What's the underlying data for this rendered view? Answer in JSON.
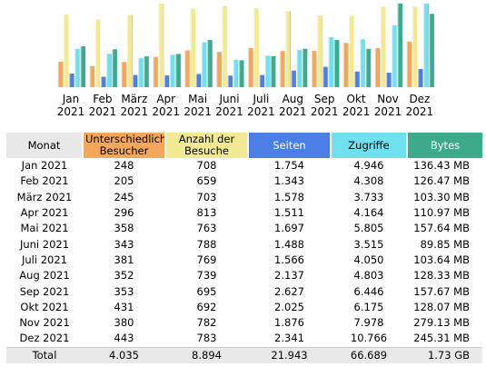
{
  "colors": {
    "visitors": "#f2a75b",
    "visits": "#f2ea93",
    "pages": "#4c7ee8",
    "hits": "#6fe0ee",
    "bandwidth": "#3eaa8c",
    "header_month_bg": "#e8e8e8"
  },
  "chart_data": {
    "type": "bar",
    "categories": [
      "Jan\n2021",
      "Feb\n2021",
      "März\n2021",
      "Apr\n2021",
      "Mai\n2021",
      "Juni\n2021",
      "Juli\n2021",
      "Aug\n2021",
      "Sep\n2021",
      "Okt\n2021",
      "Nov\n2021",
      "Dez\n2021"
    ],
    "series": [
      {
        "name": "Unterschiedliche Besucher",
        "key": "visitors",
        "values": [
          248,
          205,
          245,
          296,
          358,
          343,
          381,
          352,
          353,
          431,
          380,
          443
        ]
      },
      {
        "name": "Anzahl der Besuche",
        "key": "visits",
        "values": [
          708,
          659,
          703,
          813,
          763,
          788,
          769,
          739,
          695,
          692,
          782,
          783
        ]
      },
      {
        "name": "Seiten",
        "key": "pages",
        "values": [
          1754,
          1343,
          1578,
          1511,
          1697,
          1488,
          1566,
          2137,
          2627,
          2025,
          1876,
          2341
        ]
      },
      {
        "name": "Zugriffe",
        "key": "hits",
        "values": [
          4946,
          4308,
          3733,
          4164,
          5805,
          3515,
          4050,
          4803,
          6446,
          6175,
          7978,
          10766
        ]
      },
      {
        "name": "Bytes",
        "key": "bandwidth",
        "values": [
          136.43,
          126.47,
          103.3,
          110.97,
          157.64,
          89.85,
          103.64,
          128.33,
          157.67,
          128.07,
          279.13,
          245.31
        ],
        "unit": "MB"
      }
    ]
  },
  "table": {
    "headers": {
      "month": "Monat",
      "visitors": "Unterschiedliche Besucher",
      "visits": "Anzahl der Besuche",
      "pages": "Seiten",
      "hits": "Zugriffe",
      "bandwidth": "Bytes"
    },
    "rows": [
      {
        "month": "Jan 2021",
        "visitors": "248",
        "visits": "708",
        "pages": "1.754",
        "hits": "4.946",
        "bandwidth": "136.43 MB"
      },
      {
        "month": "Feb 2021",
        "visitors": "205",
        "visits": "659",
        "pages": "1.343",
        "hits": "4.308",
        "bandwidth": "126.47 MB"
      },
      {
        "month": "März 2021",
        "visitors": "245",
        "visits": "703",
        "pages": "1.578",
        "hits": "3.733",
        "bandwidth": "103.30 MB"
      },
      {
        "month": "Apr 2021",
        "visitors": "296",
        "visits": "813",
        "pages": "1.511",
        "hits": "4.164",
        "bandwidth": "110.97 MB"
      },
      {
        "month": "Mai 2021",
        "visitors": "358",
        "visits": "763",
        "pages": "1.697",
        "hits": "5.805",
        "bandwidth": "157.64 MB"
      },
      {
        "month": "Juni 2021",
        "visitors": "343",
        "visits": "788",
        "pages": "1.488",
        "hits": "3.515",
        "bandwidth": "89.85 MB"
      },
      {
        "month": "Juli 2021",
        "visitors": "381",
        "visits": "769",
        "pages": "1.566",
        "hits": "4.050",
        "bandwidth": "103.64 MB"
      },
      {
        "month": "Aug 2021",
        "visitors": "352",
        "visits": "739",
        "pages": "2.137",
        "hits": "4.803",
        "bandwidth": "128.33 MB"
      },
      {
        "month": "Sep 2021",
        "visitors": "353",
        "visits": "695",
        "pages": "2.627",
        "hits": "6.446",
        "bandwidth": "157.67 MB"
      },
      {
        "month": "Okt 2021",
        "visitors": "431",
        "visits": "692",
        "pages": "2.025",
        "hits": "6.175",
        "bandwidth": "128.07 MB"
      },
      {
        "month": "Nov 2021",
        "visitors": "380",
        "visits": "782",
        "pages": "1.876",
        "hits": "7.978",
        "bandwidth": "279.13 MB"
      },
      {
        "month": "Dez 2021",
        "visitors": "443",
        "visits": "783",
        "pages": "2.341",
        "hits": "10.766",
        "bandwidth": "245.31 MB"
      }
    ],
    "total": {
      "month": "Total",
      "visitors": "4.035",
      "visits": "8.894",
      "pages": "21.943",
      "hits": "66.689",
      "bandwidth": "1.73 GB"
    }
  }
}
